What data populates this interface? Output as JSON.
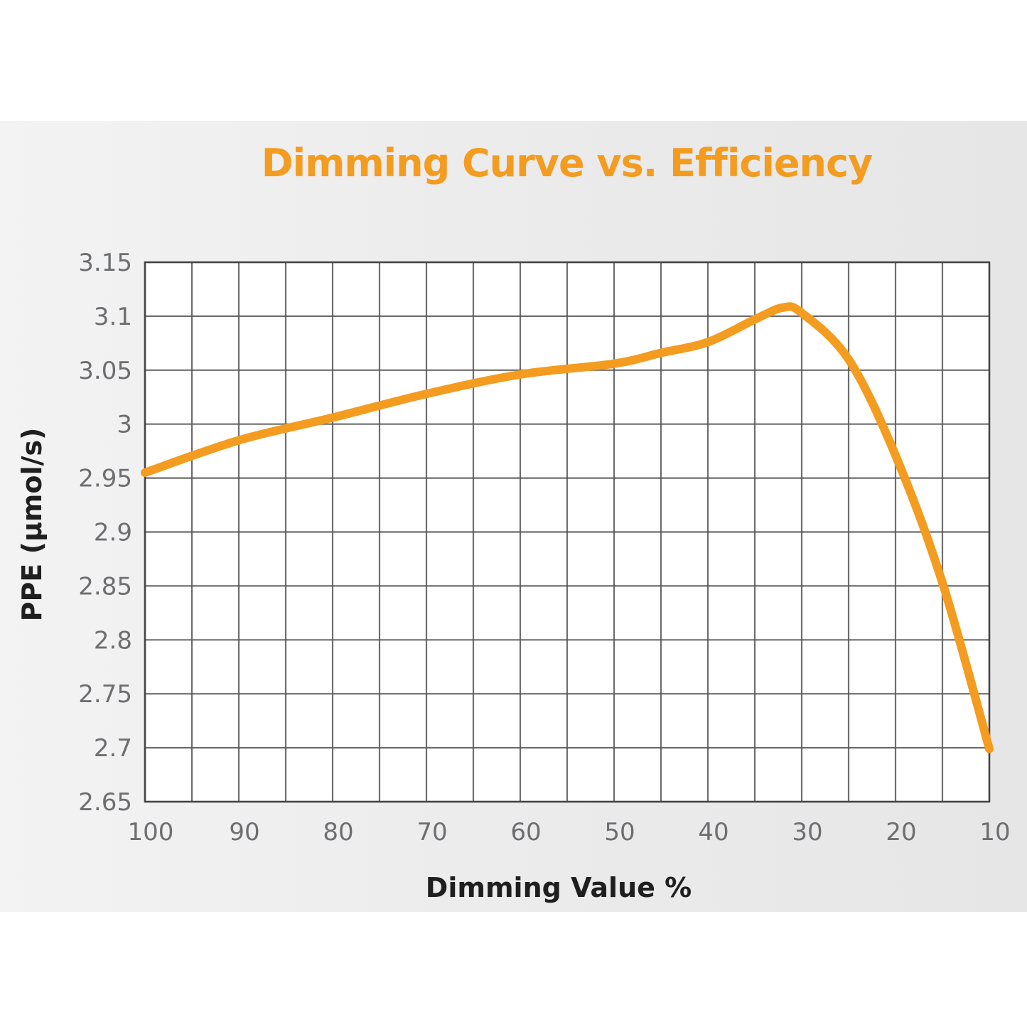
{
  "chart_data": {
    "type": "line",
    "title": "Dimming Curve vs. Efficiency",
    "xlabel": "Dimming Value %",
    "ylabel": "PPE (μmol/s)",
    "xlim": [
      100,
      10
    ],
    "ylim": [
      2.65,
      3.15
    ],
    "x_ticks": [
      100,
      90,
      80,
      70,
      60,
      50,
      40,
      30,
      20,
      10
    ],
    "x_tick_labels": [
      "100",
      "90",
      "80",
      "70",
      "60",
      "50",
      "40",
      "30",
      "20",
      "10"
    ],
    "y_ticks": [
      3.15,
      3.1,
      3.05,
      3.0,
      2.95,
      2.9,
      2.85,
      2.8,
      2.75,
      2.7,
      2.65
    ],
    "y_tick_labels": [
      "3.15",
      "3.1",
      "3.05",
      "3",
      "2.95",
      "2.9",
      "2.85",
      "2.8",
      "2.75",
      "2.7",
      "2.65"
    ],
    "x_grid_step": 5,
    "grid": true,
    "legend": "none",
    "series": [
      {
        "name": "PPE",
        "color": "#f39c1f",
        "x": [
          100,
          90,
          80,
          70,
          60,
          50,
          45,
          40,
          35,
          32,
          30,
          25,
          20,
          15,
          10
        ],
        "y": [
          2.955,
          2.985,
          3.006,
          3.028,
          3.046,
          3.056,
          3.066,
          3.076,
          3.097,
          3.108,
          3.103,
          3.06,
          2.971,
          2.853,
          2.699
        ]
      }
    ]
  },
  "colors": {
    "title": "#f39c1f",
    "line": "#f39c1f",
    "grid": "#555555",
    "tick_text": "#6d6e71",
    "axis_label": "#1f1f1f"
  }
}
